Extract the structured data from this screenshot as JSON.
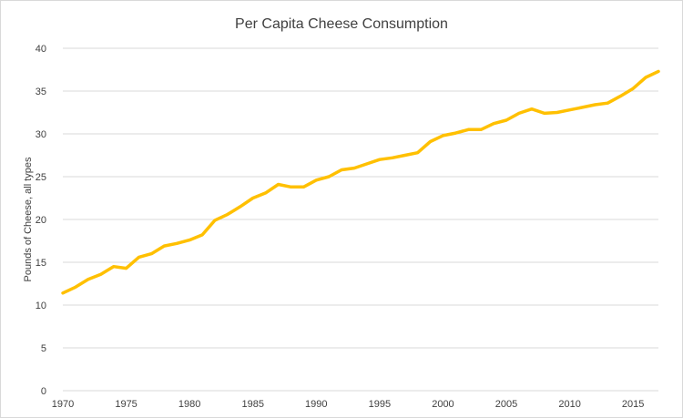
{
  "chart_data": {
    "type": "line",
    "title": "Per Capita Cheese Consumption",
    "xlabel": "",
    "ylabel": "Pounds of Cheese, all types",
    "xlim": [
      1970,
      2017
    ],
    "ylim": [
      0,
      40
    ],
    "x_ticks": [
      1970,
      1975,
      1980,
      1985,
      1990,
      1995,
      2000,
      2005,
      2010,
      2015
    ],
    "y_ticks": [
      0,
      5,
      10,
      15,
      20,
      25,
      30,
      35,
      40
    ],
    "grid": true,
    "legend": "none",
    "line_color": "#ffc000",
    "series": [
      {
        "x": [
          1970,
          1971,
          1972,
          1973,
          1974,
          1975,
          1976,
          1977,
          1978,
          1979,
          1980,
          1981,
          1982,
          1983,
          1984,
          1985,
          1986,
          1987,
          1988,
          1989,
          1990,
          1991,
          1992,
          1993,
          1994,
          1995,
          1996,
          1997,
          1998,
          1999,
          2000,
          2001,
          2002,
          2003,
          2004,
          2005,
          2006,
          2007,
          2008,
          2009,
          2010,
          2011,
          2012,
          2013,
          2014,
          2015,
          2016,
          2017
        ],
        "values": [
          11.4,
          12.1,
          13.0,
          13.6,
          14.5,
          14.3,
          15.6,
          16.0,
          16.9,
          17.2,
          17.6,
          18.2,
          19.9,
          20.6,
          21.5,
          22.5,
          23.1,
          24.1,
          23.8,
          23.8,
          24.6,
          25.0,
          25.8,
          26.0,
          26.5,
          27.0,
          27.2,
          27.5,
          27.8,
          29.1,
          29.8,
          30.1,
          30.5,
          30.5,
          31.2,
          31.6,
          32.4,
          32.9,
          32.4,
          32.5,
          32.8,
          33.1,
          33.4,
          33.6,
          34.4,
          35.3,
          36.6,
          37.3
        ]
      }
    ]
  }
}
